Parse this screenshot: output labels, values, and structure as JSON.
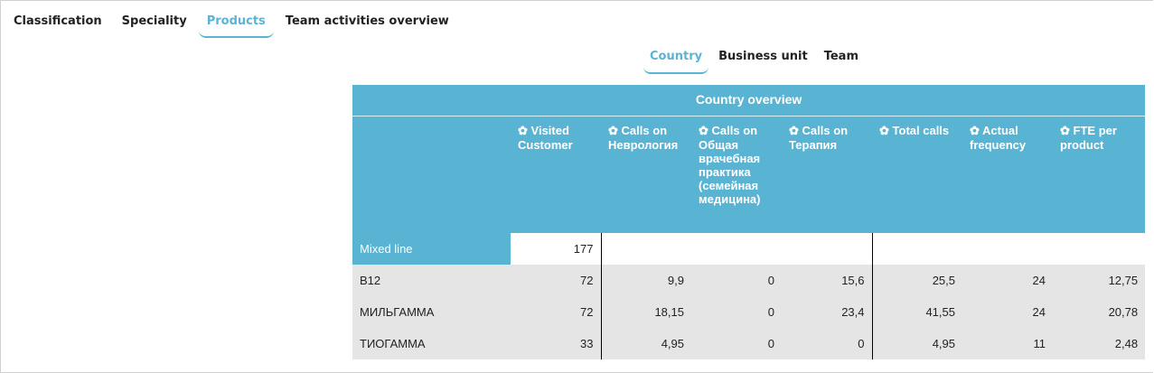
{
  "tabs": [
    {
      "label": "Classification"
    },
    {
      "label": "Speciality"
    },
    {
      "label": "Products",
      "active": true
    },
    {
      "label": "Team activities overview"
    }
  ],
  "subtabs": [
    {
      "label": "Country",
      "active": true
    },
    {
      "label": "Business unit"
    },
    {
      "label": "Team"
    }
  ],
  "table": {
    "title": "Country overview",
    "columns": [
      "Visited Customer",
      "Calls on Неврология",
      "Calls on Общая врачебная практика (семейная медицина)",
      "Calls on Терапия",
      "Total calls",
      "Actual frequency",
      "FTE per product"
    ],
    "group_row": {
      "label": "Mixed line",
      "values": [
        "177",
        "",
        "",
        "",
        "",
        "",
        ""
      ]
    },
    "rows": [
      {
        "label": "B12",
        "values": [
          "72",
          "9,9",
          "0",
          "15,6",
          "25,5",
          "24",
          "12,75"
        ]
      },
      {
        "label": "МИЛЬГАММА",
        "values": [
          "72",
          "18,15",
          "0",
          "23,4",
          "41,55",
          "24",
          "20,78"
        ]
      },
      {
        "label": "ТИОГАММА",
        "values": [
          "33",
          "4,95",
          "0",
          "0",
          "4,95",
          "11",
          "2,48"
        ]
      }
    ]
  },
  "colors": {
    "accent": "#59b4d3",
    "row_bg": "#e5e5e5"
  }
}
